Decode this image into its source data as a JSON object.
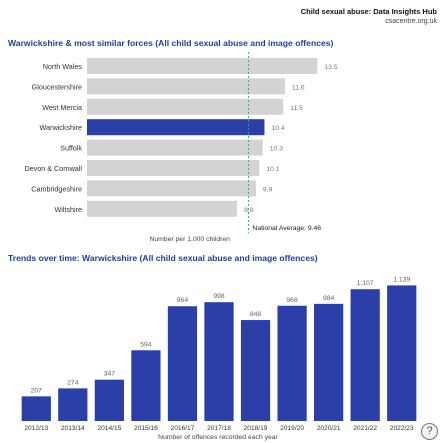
{
  "header": {
    "title": "Child sexual abuse: Data Insights Hub",
    "url": "csacentre.org.uk"
  },
  "help_label": "?",
  "chart_data": [
    {
      "type": "bar",
      "orientation": "horizontal",
      "title": "Warwickshire & most similar forces (All child sexual abuse and image offences)",
      "xlabel": "Number per 1,000 children",
      "categories": [
        "North Wales",
        "Gloucestershire",
        "West Mercia",
        "Warwickshire",
        "Suffolk",
        "Devon & Cornwall",
        "Cambridgeshire",
        "Wiltshire"
      ],
      "values": [
        13.5,
        11.6,
        11.5,
        10.4,
        10.3,
        10.1,
        9.9,
        8.8
      ],
      "value_labels": [
        "13.5",
        "11.6",
        "11.5",
        "10.4",
        "10.3",
        "10.1",
        "9.9",
        "8.8"
      ],
      "highlight": "Warwickshire",
      "reference_line": {
        "label": "National Average: 9.46",
        "value": 9.46
      },
      "xlim": [
        0,
        16
      ],
      "colors": {
        "highlight": "#2a40a8",
        "default": "#d3d3d3"
      }
    },
    {
      "type": "bar",
      "title": "Trends over time: Warwickshire (All child sexual abuse and image offences)",
      "xlabel": "Number of offences recorded each year",
      "categories": [
        "2012/13",
        "2013/14",
        "2014/15",
        "2015/16",
        "2016/17",
        "2017/18",
        "2018/19",
        "2019/20",
        "2020/21",
        "2021/22",
        "2022/23"
      ],
      "values": [
        207,
        274,
        347,
        594,
        964,
        998,
        848,
        968,
        984,
        1107,
        1139
      ],
      "value_labels": [
        "207",
        "274",
        "347",
        "594",
        "964",
        "998",
        "848",
        "968",
        "984",
        "1,107",
        "1,139"
      ],
      "ylim": [
        0,
        1260
      ],
      "colors": {
        "bar": "#2a40a8"
      }
    }
  ]
}
